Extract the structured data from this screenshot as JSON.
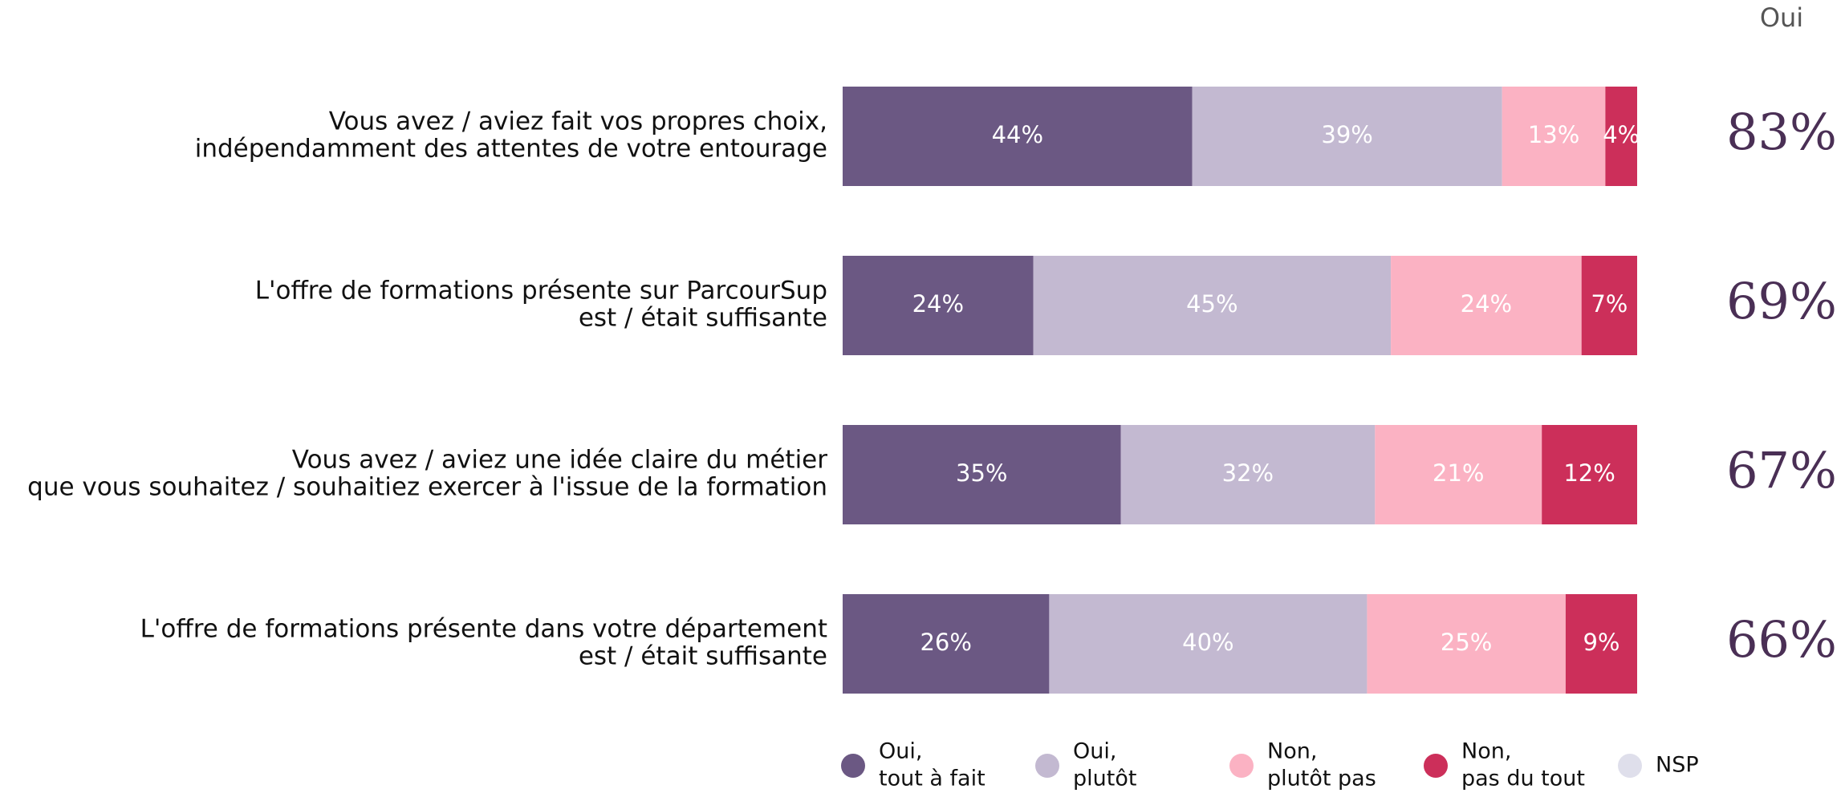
{
  "chart_data": {
    "type": "stacked-bar-horizontal",
    "categories": [
      [
        "Vous avez / aviez fait vos propres choix,",
        "indépendamment des attentes de votre entourage"
      ],
      [
        "L'offre de formations présente sur ParcourSup",
        "est / était suffisante"
      ],
      [
        "Vous avez / aviez une idée claire du métier",
        "que vous souhaitez / souhaitiez exercer à l'issue de la formation"
      ],
      [
        "L'offre de formations présente dans votre département",
        "est / était suffisante"
      ]
    ],
    "series": [
      {
        "name": [
          "Oui,",
          "tout à fait"
        ],
        "color": "#6b5883",
        "values": [
          44,
          24,
          35,
          26
        ],
        "value_labels": [
          "44%",
          "24%",
          "35%",
          "26%"
        ]
      },
      {
        "name": [
          "Oui,",
          "plutôt"
        ],
        "color": "#c3b9d1",
        "values": [
          39,
          45,
          32,
          40
        ],
        "value_labels": [
          "39%",
          "45%",
          "32%",
          "40%"
        ]
      },
      {
        "name": [
          "Non,",
          "plutôt pas"
        ],
        "color": "#fbb2c3",
        "values": [
          13,
          24,
          21,
          25
        ],
        "value_labels": [
          "13%",
          "24%",
          "21%",
          "25%"
        ]
      },
      {
        "name": [
          "Non,",
          "pas du tout"
        ],
        "color": "#cc2f5a",
        "values": [
          4,
          7,
          12,
          9
        ],
        "value_labels": [
          "4%",
          "7%",
          "12%",
          "9%"
        ]
      },
      {
        "name": [
          "NSP"
        ],
        "color": "#dfdfeb",
        "values": [
          0,
          0,
          0,
          0
        ]
      }
    ],
    "xlim": [
      0,
      100
    ],
    "oui": {
      "title": "Oui",
      "values": [
        83,
        69,
        67,
        66
      ],
      "value_labels": [
        "83%",
        "69%",
        "67%",
        "66%"
      ]
    }
  }
}
